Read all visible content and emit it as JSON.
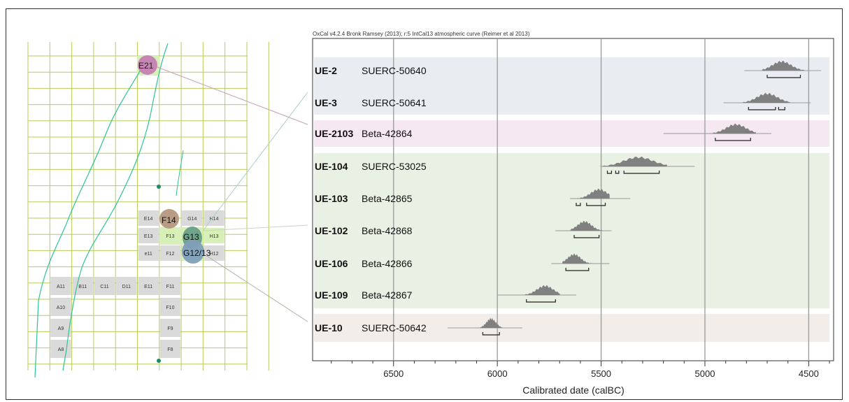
{
  "header": "OxCal v4.2.4 Bronk Ramsey (2013); r:5 IntCal13 atmospheric curve (Reimer et al 2013)",
  "colors": {
    "band_blue": "#e9edf1",
    "band_pink": "#f6e8f0",
    "band_green": "#e9f0e4",
    "band_beige": "#f2ede9",
    "distribution": "#808080",
    "gridline": "#9a9a9a",
    "grid_line_map": "#b8cc5a",
    "contour": "#2ec39a",
    "square_gray": "#dadada",
    "square_green": "#d7f0b8",
    "highlight_E21": "#c586b3",
    "highlight_F14": "#b89d84",
    "highlight_G13": "#6fa48a",
    "highlight_G1213": "#7f9fba"
  },
  "chart_data": {
    "type": "scatter",
    "title": "OxCal v4.2.4 Bronk Ramsey (2013); r:5 IntCal13 atmospheric curve (Reimer et al 2013)",
    "xlabel": "Calibrated date (calBC)",
    "xlim": [
      6890,
      4380
    ],
    "x_reversed": true,
    "xticks": [
      "6500",
      "6000",
      "5500",
      "5000",
      "4500"
    ],
    "xtick_values": [
      6500,
      6000,
      5500,
      5000,
      4500
    ],
    "grid": true,
    "series": [
      {
        "ue": "UE-2",
        "lab": "SUERC-50640",
        "band": "blue",
        "range": [
          4810,
          4440
        ],
        "peak": 4630,
        "hpd": [
          [
            4700,
            4540
          ]
        ]
      },
      {
        "ue": "UE-3",
        "lab": "SUERC-50641",
        "band": "blue",
        "range": [
          4910,
          4490
        ],
        "peak": 4700,
        "hpd": [
          [
            4790,
            4660
          ],
          [
            4645,
            4615
          ]
        ]
      },
      {
        "ue": "UE-2103",
        "lab": "Beta-42864",
        "band": "pink",
        "range": [
          5200,
          4680
        ],
        "peak": 4850,
        "hpd": [
          [
            4950,
            4780
          ]
        ]
      },
      {
        "ue": "UE-104",
        "lab": "SUERC-53025",
        "band": "green",
        "range": [
          5500,
          5050
        ],
        "peak": 5320,
        "hpd": [
          [
            5470,
            5450
          ],
          [
            5430,
            5415
          ],
          [
            5390,
            5220
          ]
        ]
      },
      {
        "ue": "UE-103",
        "lab": "Beta-42865",
        "band": "green",
        "range": [
          5650,
          5360
        ],
        "peak": 5510,
        "hpd": [
          [
            5620,
            5600
          ],
          [
            5570,
            5480
          ]
        ]
      },
      {
        "ue": "UE-102",
        "lab": "Beta-42868",
        "band": "green",
        "range": [
          5720,
          5450
        ],
        "peak": 5580,
        "hpd": [
          [
            5630,
            5510
          ]
        ]
      },
      {
        "ue": "UE-106",
        "lab": "Beta-42866",
        "band": "green",
        "range": [
          5740,
          5460
        ],
        "peak": 5630,
        "hpd": [
          [
            5670,
            5560
          ]
        ]
      },
      {
        "ue": "UE-109",
        "lab": "Beta-42867",
        "band": "green",
        "range": [
          6000,
          5620
        ],
        "peak": 5770,
        "hpd": [
          [
            5860,
            5720
          ]
        ]
      },
      {
        "ue": "UE-10",
        "lab": "SUERC-50642",
        "band": "beige",
        "range": [
          6240,
          5880
        ],
        "peak": 6030,
        "hpd": [
          [
            6070,
            5990
          ]
        ]
      }
    ]
  },
  "map": {
    "labels": {
      "E21": "E21",
      "F14": "F14",
      "G13": "G13",
      "G1213": "G12/13",
      "E14": "E14",
      "G14": "G14",
      "H14": "H14",
      "E13": "E13",
      "F13": "F13",
      "H13": "H13",
      "e11": "e11",
      "F12": "F12",
      "G12": "G12",
      "H12": "H12",
      "A11": "A11",
      "B11": "B11",
      "C11": "C11",
      "D11": "D11",
      "E11": "E11",
      "F11": "F11",
      "A10": "A10",
      "F10": "F10",
      "A9": "A9",
      "F9": "F9",
      "A8": "A8",
      "F8": "F8"
    }
  }
}
